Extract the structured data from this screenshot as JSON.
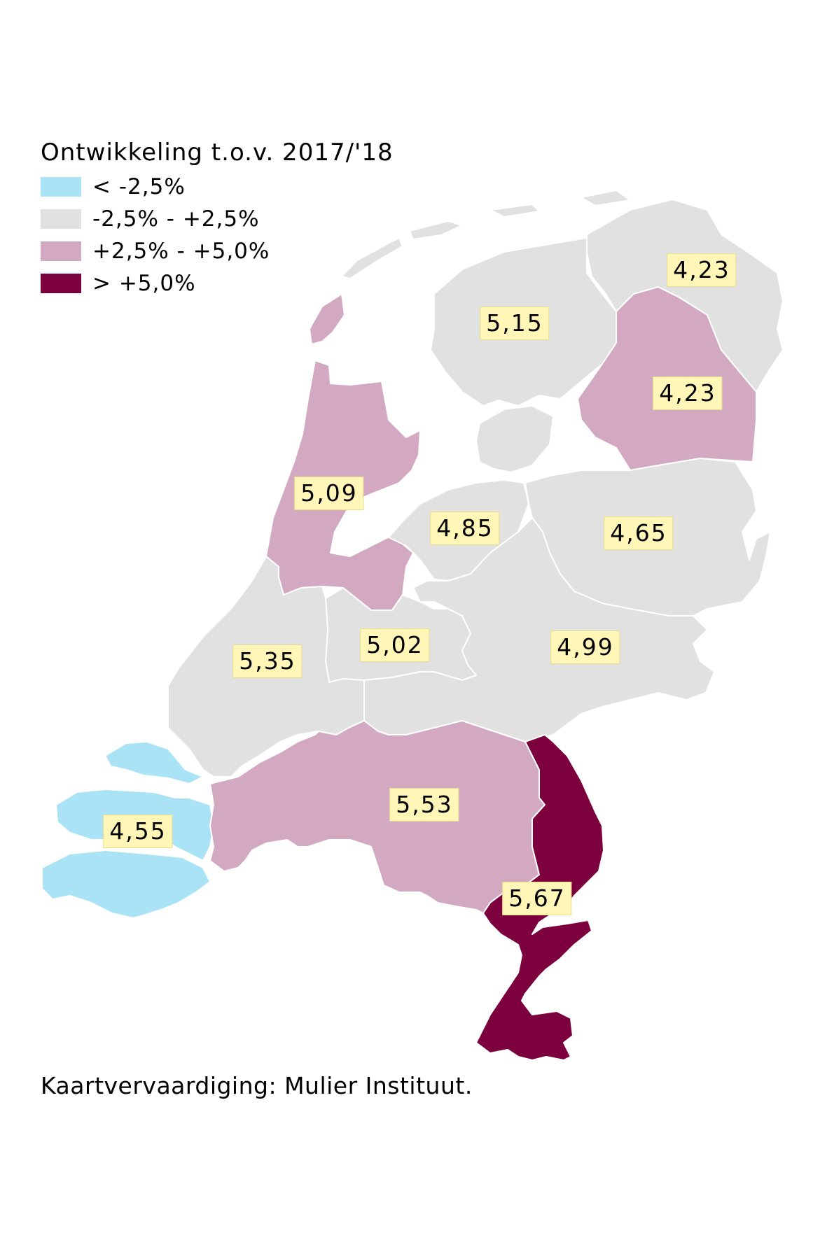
{
  "legend": {
    "title": "Ontwikkeling t.o.v. 2017/'18",
    "items": [
      {
        "label": "< -2,5%",
        "color": "#abe3f6"
      },
      {
        "label": "-2,5% - +2,5%",
        "color": "#e1e1e1"
      },
      {
        "label": "+2,5% - +5,0%",
        "color": "#d2a9c0"
      },
      {
        "label": "> +5,0%",
        "color": "#7c003d"
      }
    ]
  },
  "regions": [
    {
      "value": "4,23",
      "category": 1,
      "color": "#e1e1e1"
    },
    {
      "value": "5,15",
      "category": 1,
      "color": "#e1e1e1"
    },
    {
      "value": "4,23",
      "category": 2,
      "color": "#d2a9c0"
    },
    {
      "value": "5,09",
      "category": 2,
      "color": "#d2a9c0"
    },
    {
      "value": "4,85",
      "category": 1,
      "color": "#e1e1e1"
    },
    {
      "value": "4,65",
      "category": 1,
      "color": "#e1e1e1"
    },
    {
      "value": "5,02",
      "category": 1,
      "color": "#e1e1e1"
    },
    {
      "value": "4,99",
      "category": 1,
      "color": "#e1e1e1"
    },
    {
      "value": "5,35",
      "category": 1,
      "color": "#e1e1e1"
    },
    {
      "value": "5,53",
      "category": 2,
      "color": "#d2a9c0"
    },
    {
      "value": "5,67",
      "category": 3,
      "color": "#7c003d"
    },
    {
      "value": "4,55",
      "category": 0,
      "color": "#abe3f6"
    }
  ],
  "credit": "Kaartvervaardiging: Mulier Instituut."
}
